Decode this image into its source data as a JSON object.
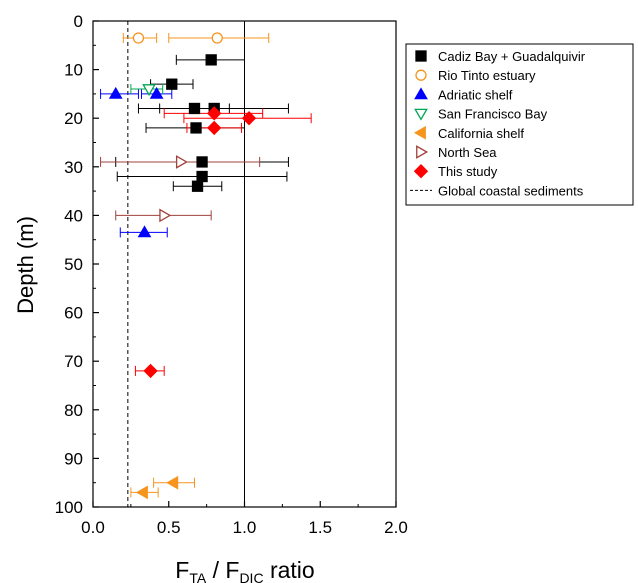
{
  "chart_data": {
    "type": "scatter",
    "xlabel": {
      "base": "F",
      "sub1": "TA",
      "sep": " / F",
      "sub2": "DIC",
      "suffix": " ratio"
    },
    "ylabel": "Depth (m)",
    "xlim": [
      0.0,
      2.0
    ],
    "ylim": [
      0,
      100
    ],
    "y_inverted": true,
    "x_ticks": [
      "0.0",
      "0.5",
      "1.0",
      "1.5",
      "2.0"
    ],
    "y_ticks": [
      "0",
      "10",
      "20",
      "30",
      "40",
      "50",
      "60",
      "70",
      "80",
      "90",
      "100"
    ],
    "grid": false,
    "legend_position": "top-right-outside",
    "reference_lines": [
      {
        "name": "Global coastal sediments",
        "x": 0.23,
        "style": "dashed",
        "color": "#000000"
      },
      {
        "name": "",
        "x": 1.0,
        "style": "solid",
        "color": "#000000"
      }
    ],
    "series": [
      {
        "name": "Cadiz Bay + Guadalquivir",
        "marker": "square",
        "filled": true,
        "color": "#000000",
        "points": [
          {
            "x": 0.78,
            "y": 8,
            "xerr": [
              0.55,
              1.0
            ]
          },
          {
            "x": 0.52,
            "y": 13,
            "xerr": [
              0.38,
              0.66
            ]
          },
          {
            "x": 0.67,
            "y": 18,
            "xerr": [
              0.44,
              0.9
            ]
          },
          {
            "x": 0.8,
            "y": 18,
            "xerr": [
              0.3,
              1.29
            ]
          },
          {
            "x": 0.68,
            "y": 22,
            "xerr": [
              0.35,
              1.0
            ]
          },
          {
            "x": 0.72,
            "y": 29,
            "xerr": [
              0.15,
              1.29
            ]
          },
          {
            "x": 0.72,
            "y": 32,
            "xerr": [
              0.16,
              1.28
            ]
          },
          {
            "x": 0.69,
            "y": 34,
            "xerr": [
              0.53,
              0.85
            ]
          }
        ]
      },
      {
        "name": "Rio Tinto estuary",
        "marker": "circle",
        "filled": false,
        "color": "#f7941d",
        "points": [
          {
            "x": 0.3,
            "y": 3.5,
            "xerr": [
              0.2,
              0.42
            ]
          },
          {
            "x": 0.82,
            "y": 3.5,
            "xerr": [
              0.5,
              1.16
            ]
          }
        ]
      },
      {
        "name": "Adriatic shelf",
        "marker": "triangle-up",
        "filled": true,
        "color": "#0000ff",
        "points": [
          {
            "x": 0.15,
            "y": 15,
            "xerr": [
              0.05,
              0.3
            ]
          },
          {
            "x": 0.42,
            "y": 15,
            "xerr": [
              0.32,
              0.52
            ]
          },
          {
            "x": 0.34,
            "y": 43.5,
            "xerr": [
              0.18,
              0.49
            ]
          }
        ]
      },
      {
        "name": "San Francisco Bay",
        "marker": "triangle-down",
        "filled": false,
        "color": "#00a651",
        "points": [
          {
            "x": 0.37,
            "y": 14,
            "xerr": [
              0.25,
              0.46
            ]
          }
        ]
      },
      {
        "name": "California shelf",
        "marker": "triangle-left",
        "filled": true,
        "color": "#f7941d",
        "points": [
          {
            "x": 0.53,
            "y": 95,
            "xerr": [
              0.4,
              0.67
            ]
          },
          {
            "x": 0.33,
            "y": 97,
            "xerr": [
              0.25,
              0.43
            ]
          }
        ]
      },
      {
        "name": "North Sea",
        "marker": "triangle-right",
        "filled": false,
        "color": "#a0413c",
        "points": [
          {
            "x": 0.58,
            "y": 29,
            "xerr": [
              0.05,
              1.1
            ]
          },
          {
            "x": 0.47,
            "y": 40,
            "xerr": [
              0.15,
              0.78
            ]
          }
        ]
      },
      {
        "name": "This study",
        "marker": "diamond",
        "filled": true,
        "color": "#ff0000",
        "points": [
          {
            "x": 1.03,
            "y": 20,
            "xerr": [
              0.6,
              1.44
            ]
          },
          {
            "x": 0.8,
            "y": 19,
            "xerr": [
              0.47,
              1.12
            ]
          },
          {
            "x": 0.8,
            "y": 22,
            "xerr": [
              0.62,
              0.98
            ]
          },
          {
            "x": 0.38,
            "y": 72,
            "xerr": [
              0.28,
              0.47
            ]
          }
        ]
      }
    ],
    "legend": [
      {
        "label": "Cadiz Bay + Guadalquivir",
        "marker": "square",
        "filled": true,
        "color": "#000000"
      },
      {
        "label": "Rio Tinto estuary",
        "marker": "circle",
        "filled": false,
        "color": "#f7941d"
      },
      {
        "label": "Adriatic shelf",
        "marker": "triangle-up",
        "filled": true,
        "color": "#0000ff"
      },
      {
        "label": "San Francisco Bay",
        "marker": "triangle-down",
        "filled": false,
        "color": "#00a651"
      },
      {
        "label": "California shelf",
        "marker": "triangle-left",
        "filled": true,
        "color": "#f7941d"
      },
      {
        "label": "North Sea",
        "marker": "triangle-right",
        "filled": false,
        "color": "#a0413c"
      },
      {
        "label": "This study",
        "marker": "diamond",
        "filled": true,
        "color": "#ff0000"
      },
      {
        "label": "Global coastal sediments",
        "marker": "dashed-line",
        "filled": false,
        "color": "#000000"
      }
    ]
  }
}
